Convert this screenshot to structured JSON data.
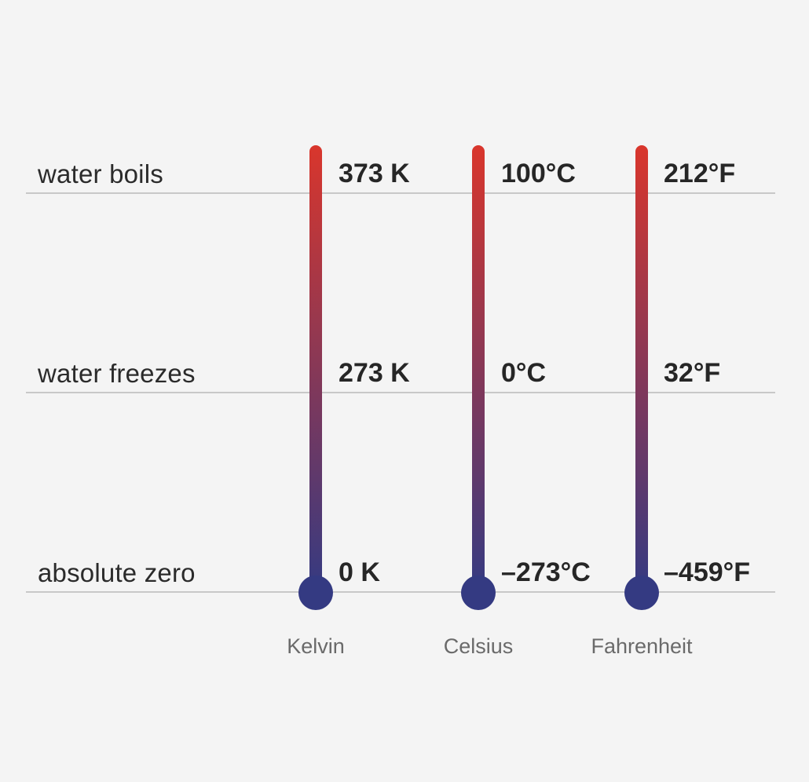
{
  "rows": [
    {
      "label": "water boils"
    },
    {
      "label": "water freezes"
    },
    {
      "label": "absolute zero"
    }
  ],
  "scales": [
    {
      "name": "Kelvin",
      "values": [
        "373 K",
        "273 K",
        "0 K"
      ]
    },
    {
      "name": "Celsius",
      "values": [
        "100°C",
        "0°C",
        "–273°C"
      ]
    },
    {
      "name": "Fahrenheit",
      "values": [
        "212°F",
        "32°F",
        "–459°F"
      ]
    }
  ],
  "colors": {
    "hot": "#d9362c",
    "cold": "#343a82",
    "line": "#c8c8c8",
    "background": "#f4f4f4"
  }
}
